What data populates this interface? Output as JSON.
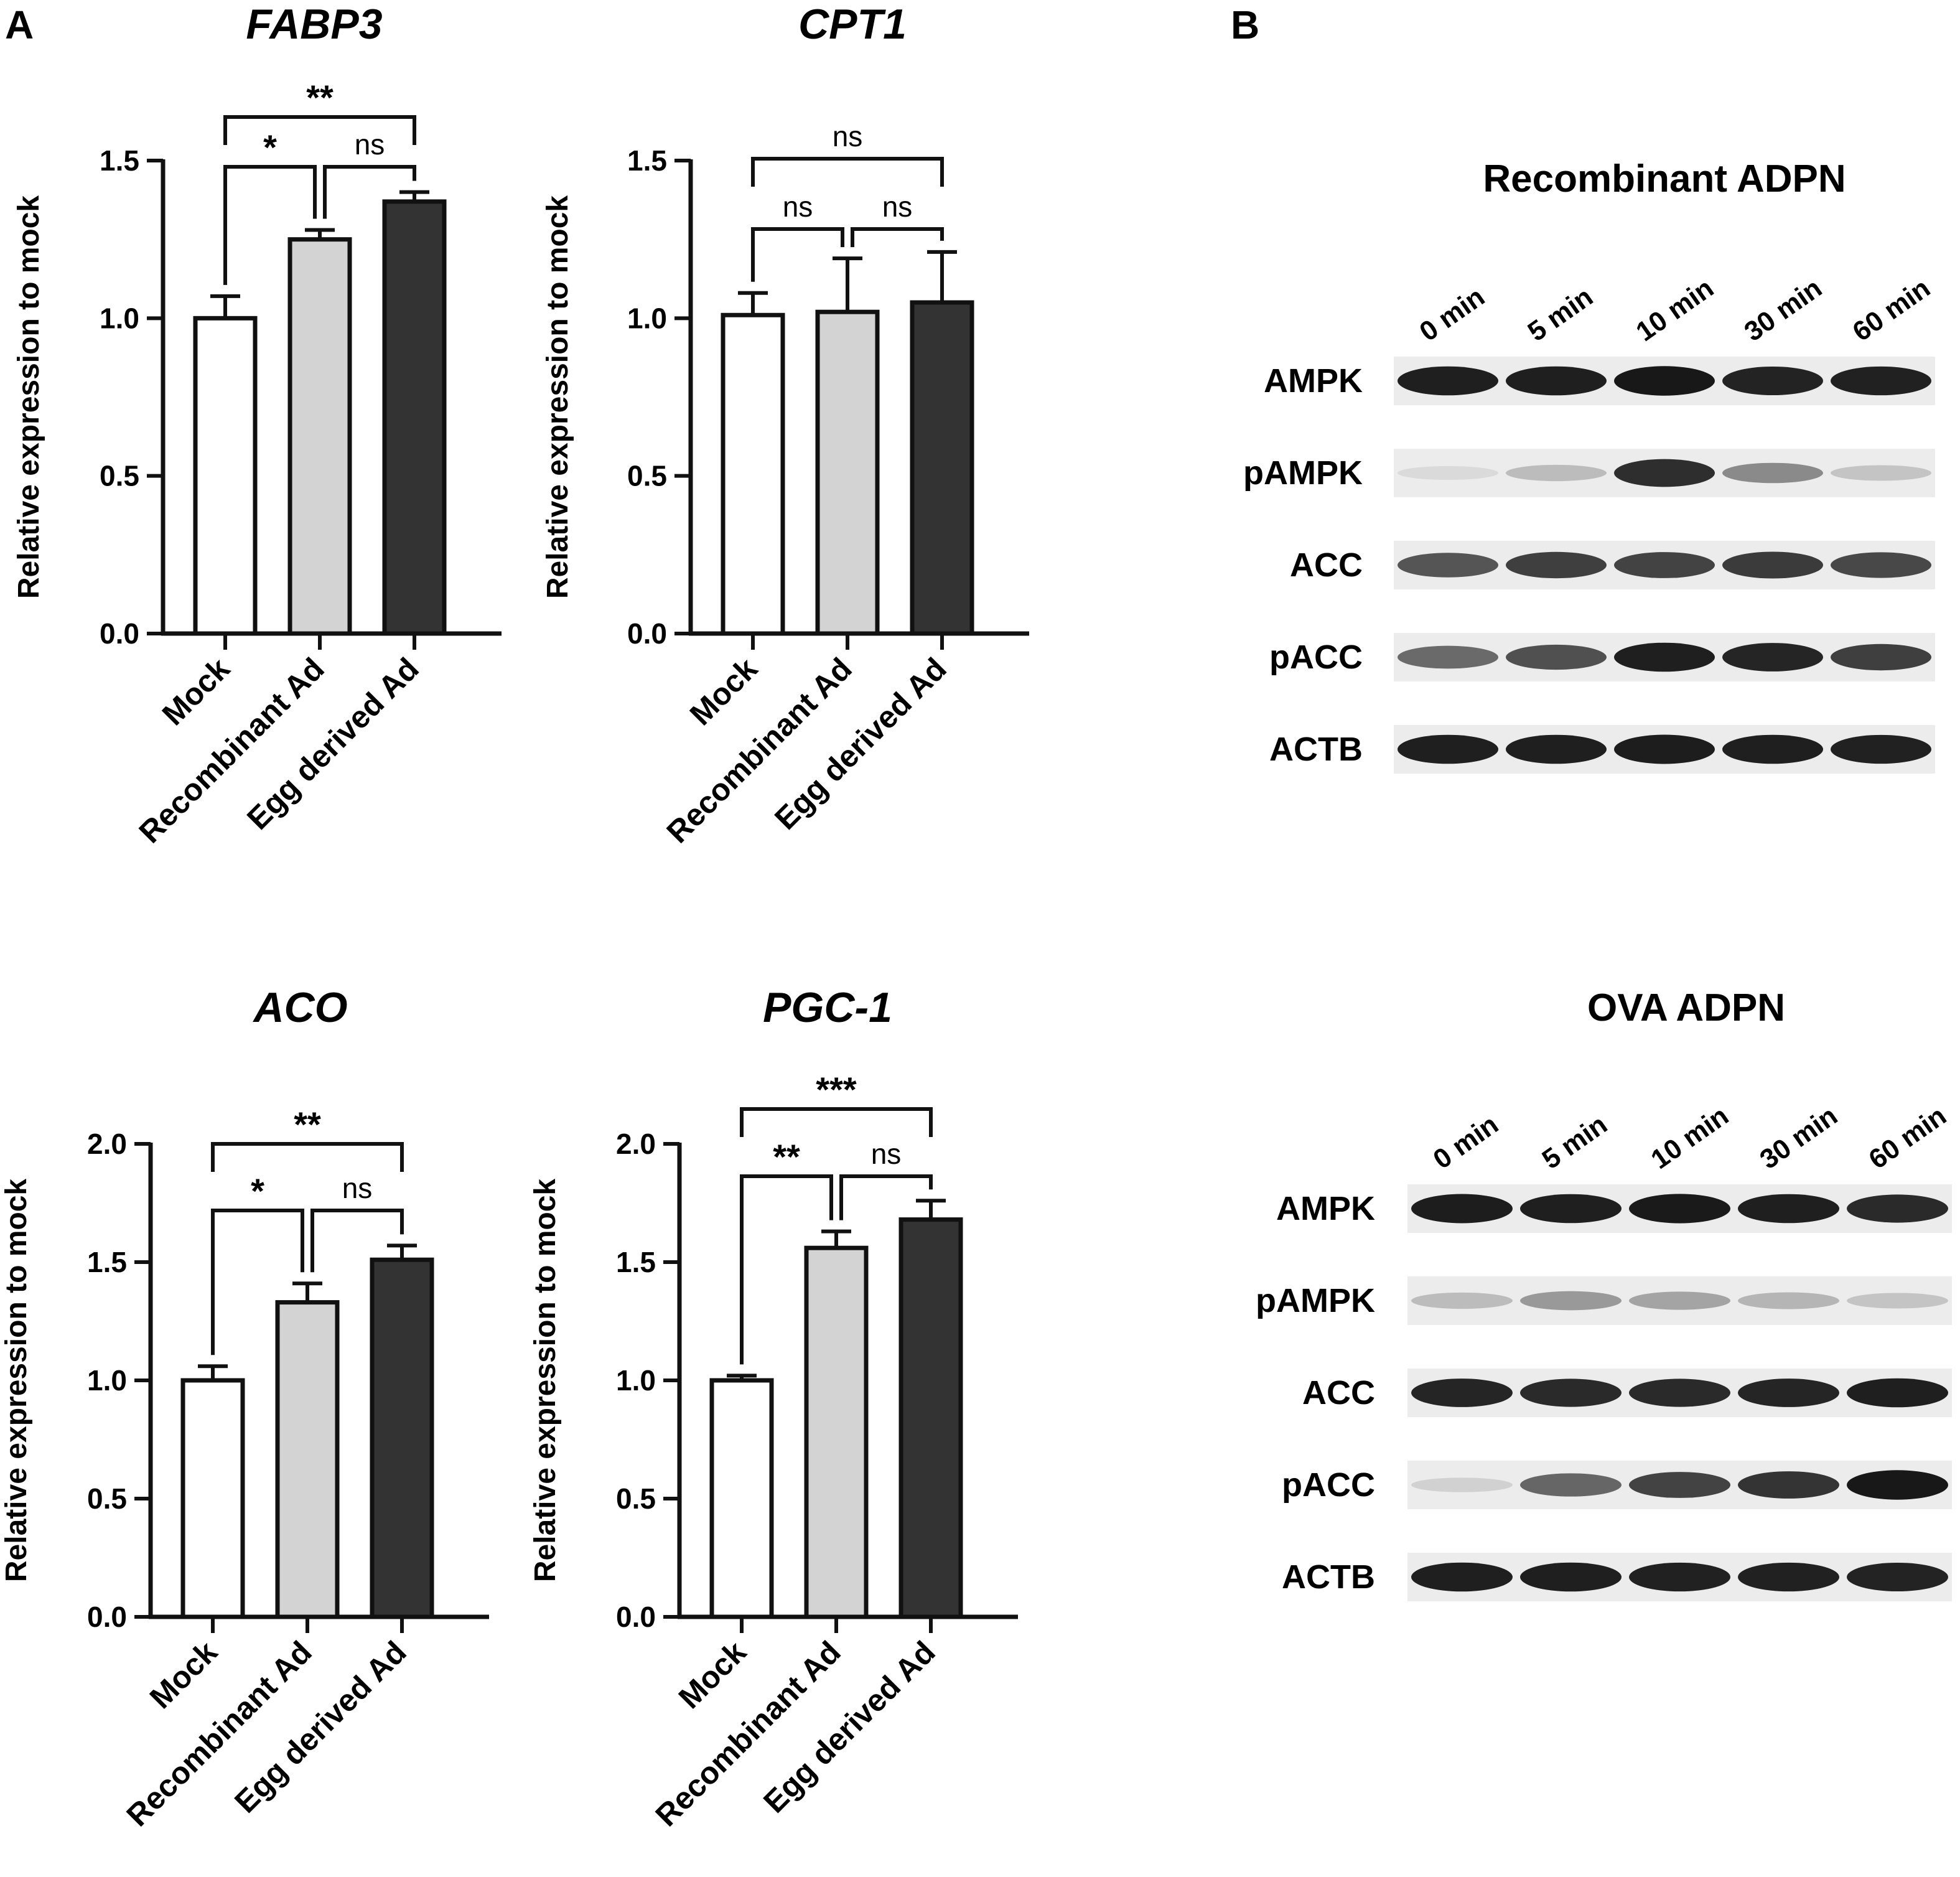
{
  "panel_labels": [
    "A",
    "B"
  ],
  "colors": {
    "mock": "#ffffff",
    "recombinant": "#d3d3d3",
    "egg": "#333333",
    "axis": "#111111"
  },
  "chart_data": [
    {
      "type": "bar",
      "title": "FABP3",
      "ylabel": "Relative expression to mock",
      "categories": [
        "Mock",
        "Recombinant Ad",
        "Egg derived Ad"
      ],
      "values": [
        1.0,
        1.25,
        1.37
      ],
      "errors": [
        0.07,
        0.03,
        0.03
      ],
      "ylim": [
        0,
        1.5
      ],
      "yticks": [
        "0.0",
        "0.5",
        "1.0",
        "1.5"
      ],
      "significance": [
        {
          "pair": [
            0,
            2
          ],
          "label": "**"
        },
        {
          "pair": [
            0,
            1
          ],
          "label": "*"
        },
        {
          "pair": [
            1,
            2
          ],
          "label": "ns"
        }
      ]
    },
    {
      "type": "bar",
      "title": "CPT1",
      "ylabel": "Relative expression to mock",
      "categories": [
        "Mock",
        "Recombinant Ad",
        "Egg derived Ad"
      ],
      "values": [
        1.01,
        1.02,
        1.05
      ],
      "errors": [
        0.07,
        0.17,
        0.16
      ],
      "ylim": [
        0,
        1.5
      ],
      "yticks": [
        "0.0",
        "0.5",
        "1.0",
        "1.5"
      ],
      "significance": [
        {
          "pair": [
            0,
            2
          ],
          "label": "ns"
        },
        {
          "pair": [
            0,
            1
          ],
          "label": "ns"
        },
        {
          "pair": [
            1,
            2
          ],
          "label": "ns"
        }
      ]
    },
    {
      "type": "bar",
      "title": "ACO",
      "ylabel": "Relative expression to mock",
      "categories": [
        "Mock",
        "Recombinant Ad",
        "Egg derived Ad"
      ],
      "values": [
        1.0,
        1.33,
        1.51
      ],
      "errors": [
        0.06,
        0.08,
        0.06
      ],
      "ylim": [
        0,
        2.0
      ],
      "yticks": [
        "0.0",
        "0.5",
        "1.0",
        "1.5",
        "2.0"
      ],
      "significance": [
        {
          "pair": [
            0,
            2
          ],
          "label": "**"
        },
        {
          "pair": [
            0,
            1
          ],
          "label": "*"
        },
        {
          "pair": [
            1,
            2
          ],
          "label": "ns"
        }
      ]
    },
    {
      "type": "bar",
      "title": "PGC-1",
      "ylabel": "Relative expression to mock",
      "categories": [
        "Mock",
        "Recombinant Ad",
        "Egg derived Ad"
      ],
      "values": [
        1.0,
        1.56,
        1.68
      ],
      "errors": [
        0.02,
        0.07,
        0.08
      ],
      "ylim": [
        0,
        2.0
      ],
      "yticks": [
        "0.0",
        "0.5",
        "1.0",
        "1.5",
        "2.0"
      ],
      "significance": [
        {
          "pair": [
            0,
            2
          ],
          "label": "***"
        },
        {
          "pair": [
            0,
            1
          ],
          "label": "**"
        },
        {
          "pair": [
            1,
            2
          ],
          "label": "ns"
        }
      ]
    }
  ],
  "western_blots": [
    {
      "title": "Recombinant ADPN",
      "lanes": [
        "0 min",
        "5 min",
        "10 min",
        "30 min",
        "60 min"
      ],
      "rows": [
        {
          "label": "AMPK",
          "intensity": [
            0.95,
            0.95,
            0.98,
            0.93,
            0.94
          ]
        },
        {
          "label": "pAMPK",
          "intensity": [
            0.08,
            0.22,
            0.88,
            0.45,
            0.18
          ]
        },
        {
          "label": "ACC",
          "intensity": [
            0.7,
            0.8,
            0.78,
            0.82,
            0.76
          ]
        },
        {
          "label": "pACC",
          "intensity": [
            0.6,
            0.72,
            0.95,
            0.92,
            0.8
          ]
        },
        {
          "label": "ACTB",
          "intensity": [
            0.95,
            0.95,
            0.96,
            0.95,
            0.94
          ]
        }
      ]
    },
    {
      "title": "OVA ADPN",
      "lanes": [
        "0 min",
        "5 min",
        "10 min",
        "30 min",
        "60 min"
      ],
      "rows": [
        {
          "label": "AMPK",
          "intensity": [
            0.96,
            0.95,
            0.97,
            0.95,
            0.9
          ]
        },
        {
          "label": "pAMPK",
          "intensity": [
            0.22,
            0.38,
            0.33,
            0.25,
            0.18
          ]
        },
        {
          "label": "ACC",
          "intensity": [
            0.92,
            0.9,
            0.9,
            0.92,
            0.95
          ]
        },
        {
          "label": "pACC",
          "intensity": [
            0.12,
            0.62,
            0.78,
            0.85,
            0.98
          ]
        },
        {
          "label": "ACTB",
          "intensity": [
            0.95,
            0.95,
            0.94,
            0.94,
            0.93
          ]
        }
      ]
    }
  ]
}
